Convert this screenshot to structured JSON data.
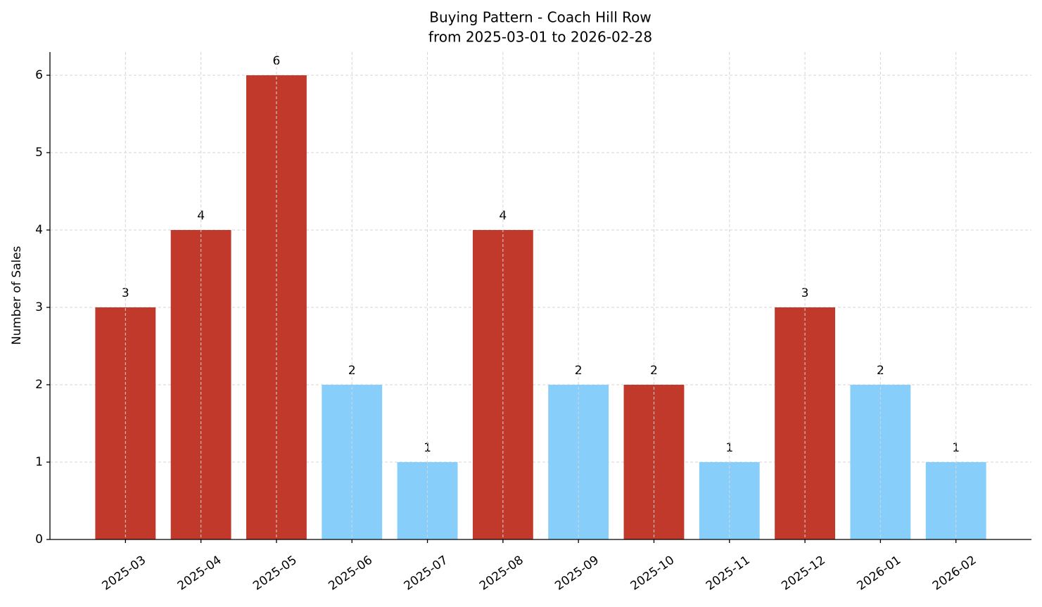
{
  "chart_data": {
    "type": "bar",
    "title": "Buying Pattern - Coach Hill Row",
    "subtitle": "from 2025-03-01 to 2026-02-28",
    "y_label": "Number of Sales",
    "categories": [
      "2025-03",
      "2025-04",
      "2025-05",
      "2025-06",
      "2025-07",
      "2025-08",
      "2025-09",
      "2025-10",
      "2025-11",
      "2025-12",
      "2026-01",
      "2026-02"
    ],
    "values": [
      3,
      4,
      6,
      2,
      1,
      4,
      2,
      2,
      1,
      3,
      2,
      1
    ],
    "colors": [
      "#c0392b",
      "#c0392b",
      "#c0392b",
      "#87cefa",
      "#87cefa",
      "#c0392b",
      "#87cefa",
      "#c0392b",
      "#87cefa",
      "#c0392b",
      "#87cefa",
      "#87cefa"
    ],
    "ylim": [
      0,
      6.3
    ],
    "yticks": [
      0,
      1,
      2,
      3,
      4,
      5,
      6
    ],
    "grid": true
  }
}
